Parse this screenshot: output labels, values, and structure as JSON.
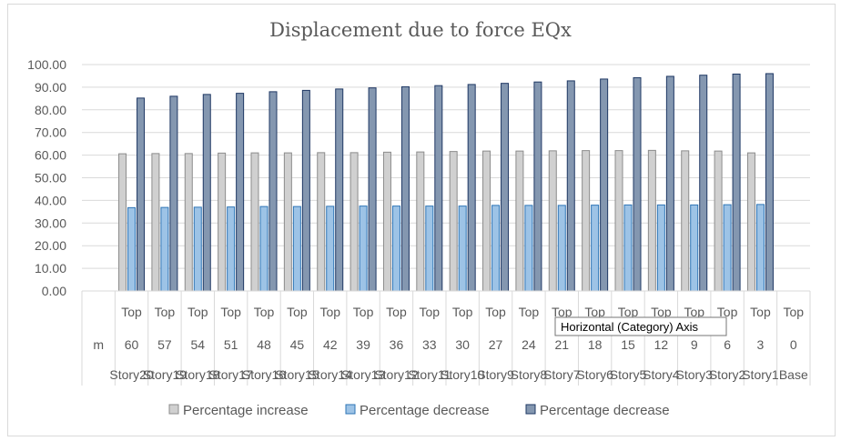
{
  "chart_data": {
    "type": "bar",
    "title": "Displacement due to force EQx",
    "xlabel": "",
    "ylabel": "",
    "ylim": [
      0,
      100
    ],
    "y_ticks": [
      "0.00",
      "10.00",
      "20.00",
      "30.00",
      "40.00",
      "50.00",
      "60.00",
      "70.00",
      "80.00",
      "90.00",
      "100.00"
    ],
    "category_levels": {
      "top": [
        "",
        "Top",
        "Top",
        "Top",
        "Top",
        "Top",
        "Top",
        "Top",
        "Top",
        "Top",
        "Top",
        "Top",
        "Top",
        "Top",
        "Top",
        "Top",
        "Top",
        "Top",
        "Top",
        "Top",
        "Top",
        "Top"
      ],
      "middle": [
        "m",
        "60",
        "57",
        "54",
        "51",
        "48",
        "45",
        "42",
        "39",
        "36",
        "33",
        "30",
        "27",
        "24",
        "21",
        "18",
        "15",
        "12",
        "9",
        "6",
        "3",
        "0"
      ],
      "bottom": [
        "",
        "Story20",
        "Story19",
        "Story18",
        "Story17",
        "Story16",
        "Story15",
        "Story14",
        "Story13",
        "Story12",
        "Story11",
        "Story10",
        "Story9",
        "Story8",
        "Story7",
        "Story6",
        "Story5",
        "Story4",
        "Story3",
        "Story2",
        "Story1",
        "Base"
      ]
    },
    "series": [
      {
        "name": "Percentage increase",
        "color": "#d0d0d0",
        "stroke": "#8c8c8c",
        "values": [
          null,
          60.6,
          60.7,
          60.7,
          60.9,
          61.0,
          61.0,
          61.1,
          61.1,
          61.3,
          61.4,
          61.6,
          61.8,
          61.8,
          61.9,
          62.0,
          62.0,
          62.1,
          61.9,
          61.8,
          61.0,
          null
        ]
      },
      {
        "name": "Percentage decrease",
        "color": "#9dc3e6",
        "stroke": "#2e75b6",
        "values": [
          null,
          36.8,
          36.9,
          37.0,
          37.1,
          37.3,
          37.3,
          37.4,
          37.5,
          37.5,
          37.5,
          37.5,
          37.8,
          37.8,
          37.8,
          37.9,
          38.0,
          38.0,
          38.0,
          38.1,
          38.2,
          null
        ]
      },
      {
        "name": "Percentage decrease",
        "color": "#8497b0",
        "stroke": "#1f3864",
        "values": [
          null,
          85.2,
          86.0,
          86.8,
          87.3,
          88.0,
          88.6,
          89.2,
          89.7,
          90.2,
          90.7,
          91.2,
          91.7,
          92.3,
          92.8,
          93.6,
          94.2,
          94.8,
          95.3,
          95.8,
          96.0,
          null
        ]
      }
    ],
    "legend_position": "bottom",
    "grid": true
  },
  "tooltip": {
    "text": "Horizontal (Category) Axis"
  }
}
